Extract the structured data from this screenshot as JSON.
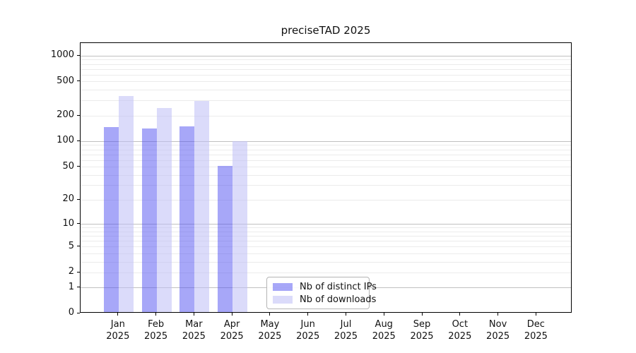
{
  "title": "preciseTAD 2025",
  "background": "#ffffff",
  "axis_color": "#000000",
  "text_color": "#111111",
  "chart_data": {
    "type": "bar",
    "title": "preciseTAD 2025",
    "scale": "log1p",
    "xlabel": "",
    "ylabel": "",
    "categories": [
      "Jan 2025",
      "Feb 2025",
      "Mar 2025",
      "Apr 2025",
      "May 2025",
      "Jun 2025",
      "Jul 2025",
      "Aug 2025",
      "Sep 2025",
      "Oct 2025",
      "Nov 2025",
      "Dec 2025"
    ],
    "series": [
      {
        "name": "Nb of distinct IPs",
        "fill": "#5050f2",
        "fill_opacity": 0.5,
        "rendered_color": "#aaaaf6",
        "values": [
          143,
          137,
          145,
          50,
          0,
          0,
          0,
          0,
          0,
          0,
          0,
          0
        ]
      },
      {
        "name": "Nb of downloads",
        "fill": "#bebef5",
        "fill_opacity": 0.55,
        "rendered_color": "#dcdcf8",
        "values": [
          330,
          236,
          288,
          98,
          0,
          0,
          0,
          0,
          0,
          0,
          0,
          0
        ]
      }
    ],
    "yticks": [
      0,
      1,
      2,
      5,
      10,
      20,
      50,
      100,
      200,
      500,
      1000
    ],
    "ylim": [
      0,
      1400
    ],
    "grid": {
      "major_values": [
        1,
        10,
        100,
        1000
      ],
      "major_color": "#c0c0c0",
      "minor_color": "#ebebeb",
      "grid_on": true
    },
    "legend": {
      "position": "lower-center-inside",
      "entries": [
        "Nb of distinct IPs",
        "Nb of downloads"
      ]
    }
  }
}
